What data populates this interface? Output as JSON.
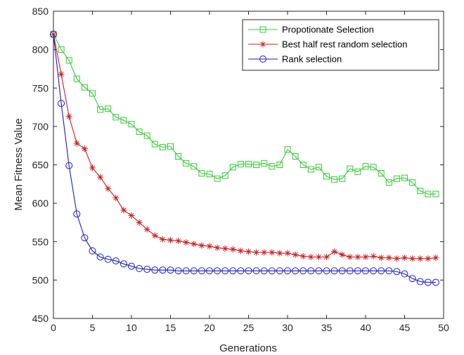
{
  "chart_data": {
    "type": "line",
    "xlabel": "Generations",
    "ylabel": "Mean Fitness Value",
    "xlim": [
      0,
      50
    ],
    "ylim": [
      450,
      850
    ],
    "xticks": [
      0,
      5,
      10,
      15,
      20,
      25,
      30,
      35,
      40,
      45,
      50
    ],
    "yticks": [
      450,
      500,
      550,
      600,
      650,
      700,
      750,
      800,
      850
    ],
    "grid": false,
    "legend_position": "top-right",
    "x": [
      0,
      1,
      2,
      3,
      4,
      5,
      6,
      7,
      8,
      9,
      10,
      11,
      12,
      13,
      14,
      15,
      16,
      17,
      18,
      19,
      20,
      21,
      22,
      23,
      24,
      25,
      26,
      27,
      28,
      29,
      30,
      31,
      32,
      33,
      34,
      35,
      36,
      37,
      38,
      39,
      40,
      41,
      42,
      43,
      44,
      45,
      46,
      47,
      48,
      49
    ],
    "series": [
      {
        "name": "Propotionate Selection",
        "color": "#33cc33",
        "marker": "square",
        "values": [
          820,
          800,
          786,
          762,
          751,
          743,
          722,
          723,
          712,
          708,
          703,
          693,
          688,
          677,
          673,
          674,
          661,
          652,
          648,
          639,
          638,
          632,
          636,
          647,
          651,
          651,
          650,
          652,
          648,
          650,
          670,
          661,
          650,
          644,
          647,
          635,
          631,
          632,
          645,
          641,
          648,
          647,
          639,
          627,
          632,
          633,
          627,
          616,
          612,
          612
        ]
      },
      {
        "name": "Best half rest random selection",
        "color": "#cc1f1f",
        "marker": "asterisk",
        "values": [
          820,
          768,
          713,
          678,
          671,
          646,
          634,
          619,
          607,
          591,
          584,
          575,
          566,
          558,
          553,
          552,
          551,
          549,
          547,
          545,
          544,
          542,
          541,
          540,
          538,
          537,
          536,
          536,
          536,
          535,
          535,
          533,
          531,
          530,
          530,
          530,
          537,
          533,
          530,
          530,
          530,
          531,
          529,
          529,
          528,
          529,
          528,
          528,
          528,
          529
        ]
      },
      {
        "name": "Rank selection",
        "color": "#1a1acc",
        "marker": "circle",
        "values": [
          820,
          730,
          649,
          586,
          555,
          538,
          530,
          527,
          525,
          521,
          518,
          515,
          514,
          513,
          513,
          513,
          512,
          512,
          512,
          512,
          512,
          512,
          512,
          512,
          512,
          512,
          512,
          512,
          512,
          512,
          512,
          512,
          512,
          512,
          512,
          512,
          512,
          512,
          512,
          512,
          512,
          512,
          512,
          512,
          511,
          508,
          502,
          498,
          497,
          497
        ]
      }
    ]
  }
}
